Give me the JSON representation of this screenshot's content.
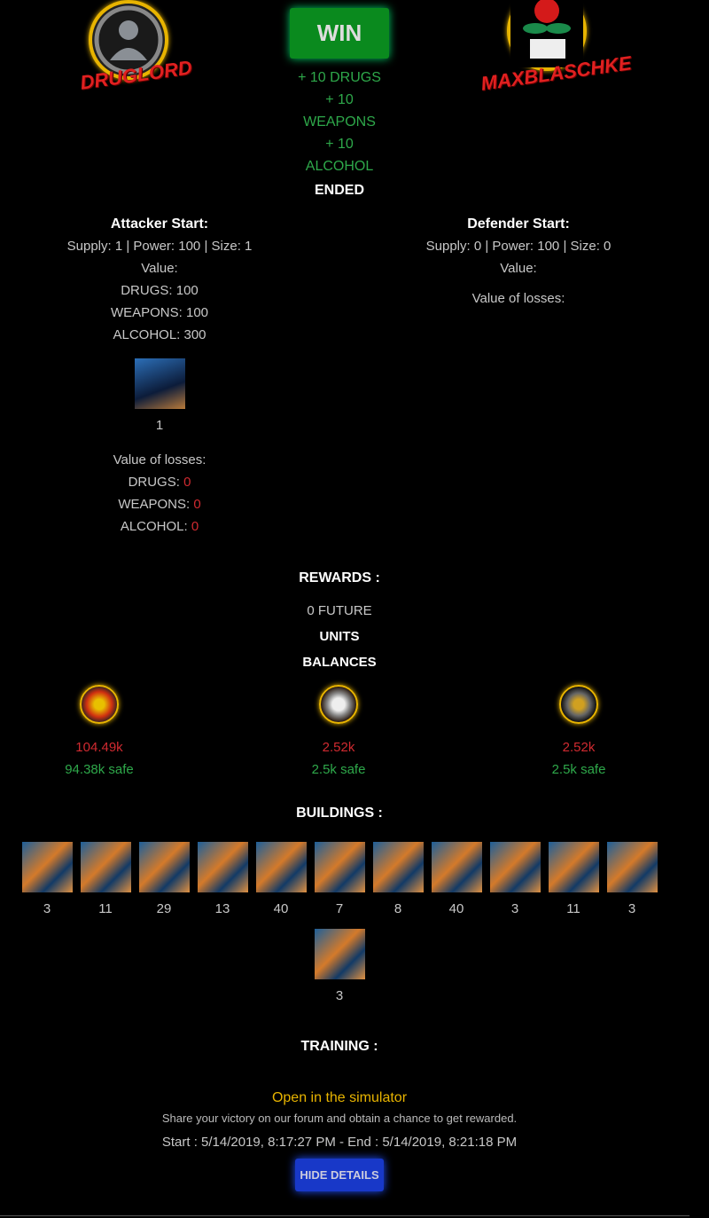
{
  "attacker": {
    "name": "DRUGLORD",
    "start_label": "Attacker Start:",
    "stats": "Supply: 1 | Power: 100 | Size: 1",
    "value_label": "Value:",
    "values": [
      "DRUGS: 100",
      "WEAPONS: 100",
      "ALCOHOL: 300"
    ],
    "unit_count": "1",
    "losses_label": "Value of losses:",
    "losses": [
      {
        "label": "DRUGS: ",
        "value": "0"
      },
      {
        "label": "WEAPONS: ",
        "value": "0"
      },
      {
        "label": "ALCOHOL: ",
        "value": "0"
      }
    ]
  },
  "defender": {
    "name": "MAXBLASCHKE",
    "start_label": "Defender Start:",
    "stats": "Supply: 0 | Power: 100 | Size: 0",
    "value_label": "Value:",
    "losses_label": "Value of losses:"
  },
  "result": {
    "badge": "WIN",
    "gains": [
      "+ 10 DRUGS",
      "+ 10",
      "WEAPONS",
      "+ 10",
      "ALCOHOL"
    ],
    "status": "ENDED"
  },
  "rewards": {
    "title": "REWARDS :",
    "future": "0 FUTURE",
    "units": "UNITS",
    "balances": "BALANCES"
  },
  "balances": [
    {
      "icon": "drugs-pills-icon",
      "amount": "104.49k",
      "safe": "94.38k safe"
    },
    {
      "icon": "weapons-revolver-icon",
      "amount": "2.52k",
      "safe": "2.5k safe"
    },
    {
      "icon": "alcohol-bottle-icon",
      "amount": "2.52k",
      "safe": "2.5k safe"
    }
  ],
  "buildings": {
    "title": "BUILDINGS :",
    "counts": [
      "3",
      "11",
      "29",
      "13",
      "40",
      "7",
      "8",
      "40",
      "3",
      "11",
      "3",
      "3"
    ]
  },
  "training": {
    "title": "TRAINING :"
  },
  "footer": {
    "simulator_link": "Open in the simulator",
    "share_text": "Share your victory on our forum and obtain a chance to get rewarded.",
    "times": "Start : 5/14/2019, 8:17:27 PM - End : 5/14/2019, 8:21:18 PM",
    "hide_button": "HIDE DETAILS"
  },
  "colors": {
    "win": "#0a8a1e",
    "gain": "#2ea84a",
    "loss": "#d02a30",
    "accent_gold": "#e8b400",
    "button_blue": "#1838c8"
  }
}
